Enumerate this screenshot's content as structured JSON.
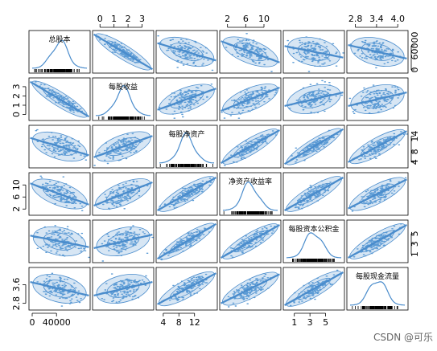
{
  "chart_data": {
    "type": "scatterplot-matrix",
    "variables": [
      {
        "name": "总股本",
        "range": [
          0,
          90000
        ]
      },
      {
        "name": "每股收益",
        "range": [
          -0.3,
          3.6
        ]
      },
      {
        "name": "每股净资产",
        "range": [
          3,
          17
        ]
      },
      {
        "name": "净资产收益率",
        "range": [
          1,
          13
        ]
      },
      {
        "name": "每股资本公积金",
        "range": [
          0,
          7
        ]
      },
      {
        "name": "每股现金流量",
        "range": [
          2.65,
          4.2
        ]
      }
    ],
    "correlation": [
      [
        1.0,
        -0.9,
        -0.45,
        -0.55,
        -0.3,
        -0.35
      ],
      [
        -0.9,
        1.0,
        0.55,
        0.6,
        0.35,
        0.35
      ],
      [
        -0.45,
        0.55,
        1.0,
        0.85,
        0.9,
        0.8
      ],
      [
        -0.55,
        0.6,
        0.85,
        1.0,
        0.85,
        0.75
      ],
      [
        -0.3,
        0.35,
        0.9,
        0.85,
        1.0,
        0.85
      ],
      [
        -0.35,
        0.35,
        0.8,
        0.75,
        0.85,
        1.0
      ]
    ],
    "top_axis": [
      {
        "column": 1,
        "ticks": [
          {
            "v": 0,
            "label": "0"
          },
          {
            "v": 1,
            "label": "1"
          },
          {
            "v": 2,
            "label": "2"
          },
          {
            "v": 3,
            "label": "3"
          }
        ]
      },
      {
        "column": 3,
        "ticks": [
          {
            "v": 2,
            "label": "2"
          },
          {
            "v": 6,
            "label": "6"
          },
          {
            "v": 10,
            "label": "10"
          }
        ]
      },
      {
        "column": 5,
        "ticks": [
          {
            "v": 2.8,
            "label": "2.8"
          },
          {
            "v": 3.4,
            "label": "3.4"
          },
          {
            "v": 4.0,
            "label": "4.0"
          }
        ]
      }
    ],
    "bottom_axis": [
      {
        "column": 0,
        "ticks": [
          {
            "v": 0,
            "label": "0"
          },
          {
            "v": 40000,
            "label": "40000"
          }
        ]
      },
      {
        "column": 2,
        "ticks": [
          {
            "v": 4,
            "label": "4"
          },
          {
            "v": 8,
            "label": "8"
          },
          {
            "v": 12,
            "label": "12"
          }
        ]
      },
      {
        "column": 4,
        "ticks": [
          {
            "v": 1,
            "label": "1"
          },
          {
            "v": 3,
            "label": "3"
          },
          {
            "v": 5,
            "label": "5"
          }
        ]
      }
    ],
    "left_axis": [
      {
        "row": 1,
        "ticks": [
          {
            "v": 0,
            "label": "0"
          },
          {
            "v": 1,
            "label": "1"
          },
          {
            "v": 2,
            "label": "2"
          },
          {
            "v": 3,
            "label": "3"
          }
        ]
      },
      {
        "row": 3,
        "ticks": [
          {
            "v": 2,
            "label": "2"
          },
          {
            "v": 6,
            "label": "6"
          },
          {
            "v": 10,
            "label": "10"
          }
        ]
      },
      {
        "row": 5,
        "ticks": [
          {
            "v": 2.8,
            "label": "2.8"
          },
          {
            "v": 3.6,
            "label": "3.6"
          }
        ]
      }
    ],
    "right_axis": [
      {
        "row": 0,
        "ticks": [
          {
            "v": 0,
            "label": "0"
          },
          {
            "v": 60000,
            "label": "60000"
          }
        ]
      },
      {
        "row": 2,
        "ticks": [
          {
            "v": 4,
            "label": "4"
          },
          {
            "v": 8,
            "label": "8"
          },
          {
            "v": 14,
            "label": "14"
          }
        ]
      },
      {
        "row": 4,
        "ticks": [
          {
            "v": 1,
            "label": "1"
          },
          {
            "v": 3,
            "label": "3"
          },
          {
            "v": 5,
            "label": "5"
          }
        ]
      }
    ],
    "colors": {
      "points": "#5b9bd5",
      "ellipse_fill": "#c6dbef",
      "line": "#4a8ccc",
      "frame": "#000000"
    },
    "diagonal": "density",
    "off_diagonal": "scatter with data ellipses and regression line",
    "grid": false,
    "legend": "none"
  },
  "watermark": "CSDN @可乐"
}
